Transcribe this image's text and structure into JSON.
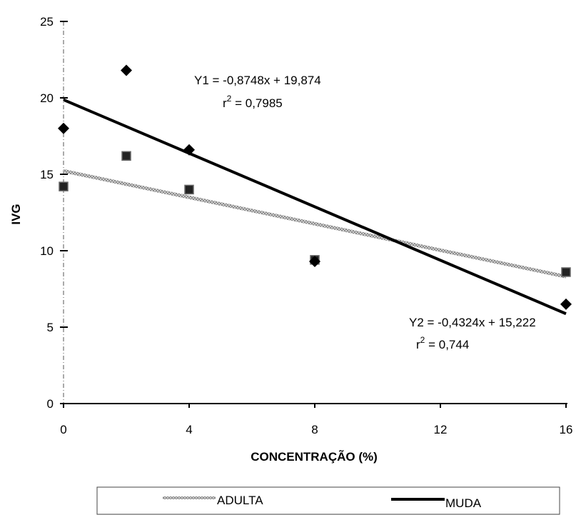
{
  "chart_data": {
    "type": "scatter",
    "title": "",
    "xlabel": "CONCENTRAÇÃO (%)",
    "ylabel": "IVG",
    "xlim": [
      0,
      16
    ],
    "ylim": [
      0,
      25
    ],
    "x_ticks": [
      0,
      4,
      8,
      12,
      16
    ],
    "y_ticks": [
      0,
      5,
      10,
      15,
      20,
      25
    ],
    "x_tick_labels": [
      "0",
      "4",
      "8",
      "12",
      "16"
    ],
    "y_tick_labels": [
      "0",
      "5",
      "10",
      "15",
      "20",
      "25"
    ],
    "grid": false,
    "legend_position": "bottom",
    "series": [
      {
        "name": "ADULTA",
        "marker": "square",
        "line_style": "dotted",
        "color": "#b0b0b0",
        "x": [
          0,
          2,
          4,
          8,
          16
        ],
        "y": [
          14.2,
          16.2,
          14.0,
          9.4,
          8.6
        ],
        "trend": {
          "slope": -0.4324,
          "intercept": 15.222
        }
      },
      {
        "name": "MUDA",
        "marker": "diamond",
        "line_style": "solid",
        "color": "#000000",
        "x": [
          0,
          2,
          4,
          8,
          16
        ],
        "y": [
          18.0,
          21.8,
          16.6,
          9.3,
          6.5
        ],
        "trend": {
          "slope": -0.8748,
          "intercept": 19.874
        }
      }
    ],
    "annotations": {
      "eq1": "Y1 = -0,8748x + 19,874",
      "r2_1_prefix": "r",
      "r2_1_sup": "2",
      "r2_1_value": " = 0,7985",
      "eq2": "Y2 = -0,4324x + 15,222",
      "r2_2_prefix": "r",
      "r2_2_sup": "2",
      "r2_2_value": " = 0,744"
    }
  }
}
